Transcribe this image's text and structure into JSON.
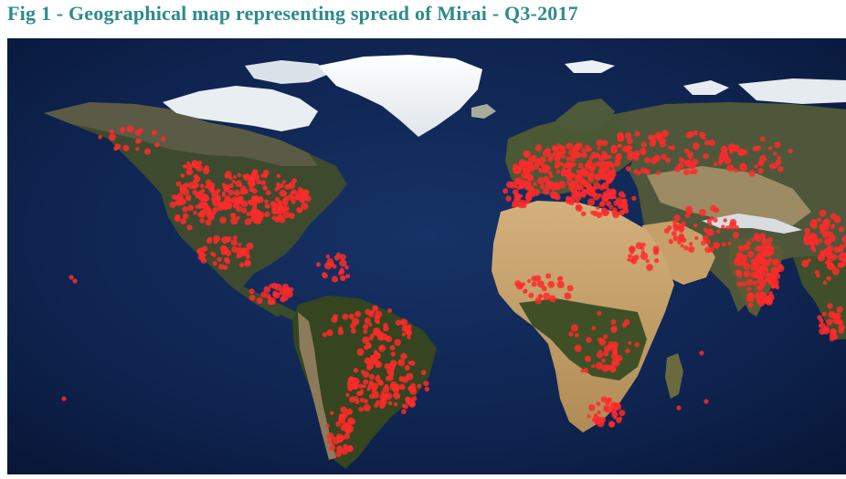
{
  "figure": {
    "title": "Fig 1 - Geographical map representing spread of Mirai - Q3-2017"
  },
  "map": {
    "projection": "equirectangular",
    "basemap": "satellite night-blue ocean",
    "marker_color": "#ff2a2a",
    "ocean_color": "#0e2350",
    "ice_color": "#f2f4f6",
    "desert_color": "#c9a36e",
    "vegetation_color": "#3a4a25"
  }
}
